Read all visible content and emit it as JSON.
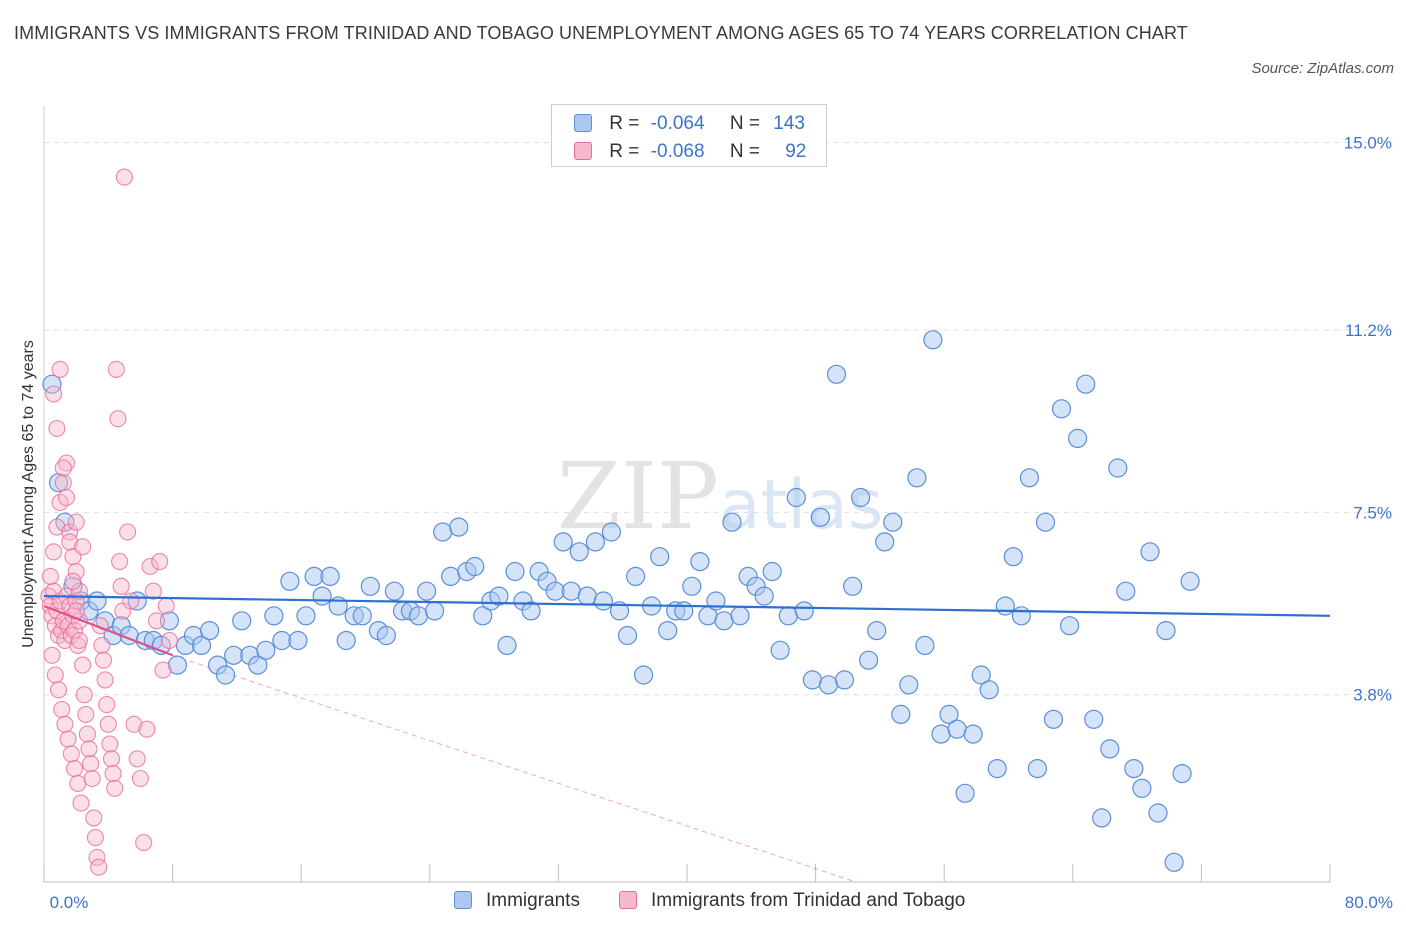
{
  "title": "IMMIGRANTS VS IMMIGRANTS FROM TRINIDAD AND TOBAGO UNEMPLOYMENT AMONG AGES 65 TO 74 YEARS CORRELATION CHART",
  "source": "Source: ZipAtlas.com",
  "colors": {
    "blue": "#5b8fd8",
    "blue_fill": "#aac8f0",
    "pink": "#e86c98",
    "pink_fill": "#f6b8cc",
    "axis_text": "#3d74c9",
    "grid": "#dddddd"
  },
  "legend_top": [
    {
      "r_label": "R =",
      "r_value": "-0.064",
      "n_label": "N =",
      "n_value": "143"
    },
    {
      "r_label": "R =",
      "r_value": "-0.068",
      "n_label": "N =",
      "n_value": "92"
    }
  ],
  "legend_bottom": [
    "Immigrants",
    "Immigrants from Trinidad and Tobago"
  ],
  "watermark": "ZIPatlas",
  "chart_data": {
    "type": "scatter",
    "ylabel": "Unemployment Among Ages 65 to 74 years",
    "xlabel": "",
    "x_tick_labels": [
      "0.0%",
      "80.0%"
    ],
    "y_tick_labels": [
      "15.0%",
      "11.2%",
      "7.5%",
      "3.8%"
    ],
    "y_ticks": [
      15.0,
      11.2,
      7.5,
      3.8
    ],
    "xlim": [
      0,
      80
    ],
    "ylim": [
      0,
      15.5
    ],
    "series": [
      {
        "name": "Immigrants",
        "r": -0.064,
        "n": 143,
        "trend": {
          "x0": 0,
          "y0": 5.8,
          "x1": 80,
          "y1": 5.4
        },
        "points": [
          [
            0.5,
            10.1
          ],
          [
            0.9,
            8.1
          ],
          [
            1.3,
            7.3
          ],
          [
            1.8,
            6.0
          ],
          [
            2.3,
            5.7
          ],
          [
            2.8,
            5.5
          ],
          [
            3.3,
            5.7
          ],
          [
            3.8,
            5.3
          ],
          [
            4.3,
            5.0
          ],
          [
            4.8,
            5.2
          ],
          [
            5.3,
            5.0
          ],
          [
            5.8,
            5.7
          ],
          [
            6.3,
            4.9
          ],
          [
            6.8,
            4.9
          ],
          [
            7.3,
            4.8
          ],
          [
            7.8,
            5.3
          ],
          [
            8.3,
            4.4
          ],
          [
            8.8,
            4.8
          ],
          [
            9.3,
            5.0
          ],
          [
            9.8,
            4.8
          ],
          [
            10.3,
            5.1
          ],
          [
            10.8,
            4.4
          ],
          [
            11.3,
            4.2
          ],
          [
            11.8,
            4.6
          ],
          [
            12.3,
            5.3
          ],
          [
            12.8,
            4.6
          ],
          [
            13.3,
            4.4
          ],
          [
            13.8,
            4.7
          ],
          [
            14.3,
            5.4
          ],
          [
            14.8,
            4.9
          ],
          [
            15.3,
            6.1
          ],
          [
            15.8,
            4.9
          ],
          [
            16.3,
            5.4
          ],
          [
            16.8,
            6.2
          ],
          [
            17.3,
            5.8
          ],
          [
            17.8,
            6.2
          ],
          [
            18.3,
            5.6
          ],
          [
            18.8,
            4.9
          ],
          [
            19.3,
            5.4
          ],
          [
            19.8,
            5.4
          ],
          [
            20.3,
            6.0
          ],
          [
            20.8,
            5.1
          ],
          [
            21.3,
            5.0
          ],
          [
            21.8,
            5.9
          ],
          [
            22.3,
            5.5
          ],
          [
            22.8,
            5.5
          ],
          [
            23.3,
            5.4
          ],
          [
            23.8,
            5.9
          ],
          [
            24.3,
            5.5
          ],
          [
            24.8,
            7.1
          ],
          [
            25.3,
            6.2
          ],
          [
            25.8,
            7.2
          ],
          [
            26.3,
            6.3
          ],
          [
            26.8,
            6.4
          ],
          [
            27.3,
            5.4
          ],
          [
            27.8,
            5.7
          ],
          [
            28.3,
            5.8
          ],
          [
            28.8,
            4.8
          ],
          [
            29.3,
            6.3
          ],
          [
            29.8,
            5.7
          ],
          [
            30.3,
            5.5
          ],
          [
            30.8,
            6.3
          ],
          [
            31.3,
            6.1
          ],
          [
            31.8,
            5.9
          ],
          [
            32.3,
            6.9
          ],
          [
            32.8,
            5.9
          ],
          [
            33.3,
            6.7
          ],
          [
            33.8,
            5.8
          ],
          [
            34.3,
            6.9
          ],
          [
            34.8,
            5.7
          ],
          [
            35.3,
            7.1
          ],
          [
            35.8,
            5.5
          ],
          [
            36.3,
            5.0
          ],
          [
            36.8,
            6.2
          ],
          [
            37.3,
            4.2
          ],
          [
            37.8,
            5.6
          ],
          [
            38.3,
            6.6
          ],
          [
            38.8,
            5.1
          ],
          [
            39.3,
            5.5
          ],
          [
            39.8,
            5.5
          ],
          [
            40.3,
            6.0
          ],
          [
            40.8,
            6.5
          ],
          [
            41.3,
            5.4
          ],
          [
            41.8,
            5.7
          ],
          [
            42.3,
            5.3
          ],
          [
            42.8,
            7.3
          ],
          [
            43.3,
            5.4
          ],
          [
            43.8,
            6.2
          ],
          [
            44.3,
            6.0
          ],
          [
            44.8,
            5.8
          ],
          [
            45.3,
            6.3
          ],
          [
            45.8,
            4.7
          ],
          [
            46.3,
            5.4
          ],
          [
            46.8,
            7.8
          ],
          [
            47.3,
            5.5
          ],
          [
            47.8,
            4.1
          ],
          [
            48.3,
            7.4
          ],
          [
            48.8,
            4.0
          ],
          [
            49.3,
            10.3
          ],
          [
            49.8,
            4.1
          ],
          [
            50.3,
            6.0
          ],
          [
            50.8,
            7.8
          ],
          [
            51.3,
            4.5
          ],
          [
            51.8,
            5.1
          ],
          [
            52.3,
            6.9
          ],
          [
            52.8,
            7.3
          ],
          [
            53.3,
            3.4
          ],
          [
            53.8,
            4.0
          ],
          [
            54.3,
            8.2
          ],
          [
            54.8,
            4.8
          ],
          [
            55.3,
            11.0
          ],
          [
            55.8,
            3.0
          ],
          [
            56.3,
            3.4
          ],
          [
            56.8,
            3.1
          ],
          [
            57.3,
            1.8
          ],
          [
            57.8,
            3.0
          ],
          [
            58.3,
            4.2
          ],
          [
            58.8,
            3.9
          ],
          [
            59.3,
            2.3
          ],
          [
            59.8,
            5.6
          ],
          [
            60.3,
            6.6
          ],
          [
            60.8,
            5.4
          ],
          [
            61.3,
            8.2
          ],
          [
            61.8,
            2.3
          ],
          [
            62.3,
            7.3
          ],
          [
            62.8,
            3.3
          ],
          [
            63.3,
            9.6
          ],
          [
            63.8,
            5.2
          ],
          [
            64.3,
            9.0
          ],
          [
            64.8,
            10.1
          ],
          [
            65.3,
            3.3
          ],
          [
            65.8,
            1.3
          ],
          [
            66.3,
            2.7
          ],
          [
            66.8,
            8.4
          ],
          [
            67.3,
            5.9
          ],
          [
            67.8,
            2.3
          ],
          [
            68.3,
            1.9
          ],
          [
            68.8,
            6.7
          ],
          [
            69.3,
            1.4
          ],
          [
            69.8,
            5.1
          ],
          [
            70.3,
            0.4
          ],
          [
            70.8,
            2.2
          ],
          [
            71.3,
            6.1
          ]
        ]
      },
      {
        "name": "Immigrants from Trinidad and Tobago",
        "r": -0.068,
        "n": 92,
        "trend": {
          "x0": 0,
          "y0": 5.6,
          "x1": 8.0,
          "y1": 4.6
        },
        "trend_ext": {
          "x0": 8.0,
          "y0": 4.6,
          "x1": 50.5,
          "y1": 0.0
        },
        "points": [
          [
            0.3,
            5.8
          ],
          [
            0.4,
            5.6
          ],
          [
            0.5,
            5.4
          ],
          [
            0.6,
            5.9
          ],
          [
            0.7,
            5.2
          ],
          [
            0.8,
            5.5
          ],
          [
            0.9,
            5.0
          ],
          [
            1.0,
            5.7
          ],
          [
            1.1,
            5.1
          ],
          [
            1.2,
            5.3
          ],
          [
            1.3,
            4.9
          ],
          [
            1.4,
            5.8
          ],
          [
            1.5,
            5.2
          ],
          [
            1.6,
            5.6
          ],
          [
            1.7,
            5.0
          ],
          [
            1.8,
            5.4
          ],
          [
            1.9,
            5.1
          ],
          [
            2.0,
            5.7
          ],
          [
            2.1,
            4.8
          ],
          [
            2.2,
            5.3
          ],
          [
            0.4,
            6.2
          ],
          [
            0.6,
            6.7
          ],
          [
            0.8,
            7.2
          ],
          [
            1.0,
            7.7
          ],
          [
            1.2,
            8.1
          ],
          [
            1.4,
            8.5
          ],
          [
            1.6,
            7.1
          ],
          [
            1.8,
            6.6
          ],
          [
            2.0,
            6.3
          ],
          [
            2.2,
            5.9
          ],
          [
            0.5,
            4.6
          ],
          [
            0.7,
            4.2
          ],
          [
            0.9,
            3.9
          ],
          [
            1.1,
            3.5
          ],
          [
            1.3,
            3.2
          ],
          [
            1.5,
            2.9
          ],
          [
            1.7,
            2.6
          ],
          [
            1.9,
            2.3
          ],
          [
            2.1,
            2.0
          ],
          [
            2.3,
            1.6
          ],
          [
            0.6,
            9.9
          ],
          [
            0.8,
            9.2
          ],
          [
            1.0,
            10.4
          ],
          [
            1.2,
            8.4
          ],
          [
            1.4,
            7.8
          ],
          [
            1.6,
            6.9
          ],
          [
            1.8,
            6.1
          ],
          [
            2.0,
            5.5
          ],
          [
            2.2,
            4.9
          ],
          [
            2.4,
            4.4
          ],
          [
            2.5,
            3.8
          ],
          [
            2.6,
            3.4
          ],
          [
            2.7,
            3.0
          ],
          [
            2.8,
            2.7
          ],
          [
            2.9,
            2.4
          ],
          [
            3.0,
            2.1
          ],
          [
            3.1,
            1.3
          ],
          [
            3.2,
            0.9
          ],
          [
            3.3,
            0.5
          ],
          [
            3.4,
            0.3
          ],
          [
            3.5,
            5.2
          ],
          [
            3.6,
            4.8
          ],
          [
            3.7,
            4.5
          ],
          [
            3.8,
            4.1
          ],
          [
            3.9,
            3.6
          ],
          [
            4.0,
            3.2
          ],
          [
            4.1,
            2.8
          ],
          [
            4.2,
            2.5
          ],
          [
            4.3,
            2.2
          ],
          [
            4.4,
            1.9
          ],
          [
            4.5,
            10.4
          ],
          [
            4.6,
            9.4
          ],
          [
            4.7,
            6.5
          ],
          [
            4.8,
            6.0
          ],
          [
            4.9,
            5.5
          ],
          [
            5.0,
            14.3
          ],
          [
            5.2,
            7.1
          ],
          [
            5.4,
            5.7
          ],
          [
            5.6,
            3.2
          ],
          [
            5.8,
            2.5
          ],
          [
            6.0,
            2.1
          ],
          [
            6.2,
            0.8
          ],
          [
            6.4,
            3.1
          ],
          [
            6.6,
            6.4
          ],
          [
            6.8,
            5.9
          ],
          [
            7.0,
            5.3
          ],
          [
            7.2,
            6.5
          ],
          [
            7.4,
            4.3
          ],
          [
            7.6,
            5.6
          ],
          [
            7.8,
            4.9
          ],
          [
            2.0,
            7.3
          ],
          [
            2.4,
            6.8
          ]
        ]
      }
    ]
  }
}
